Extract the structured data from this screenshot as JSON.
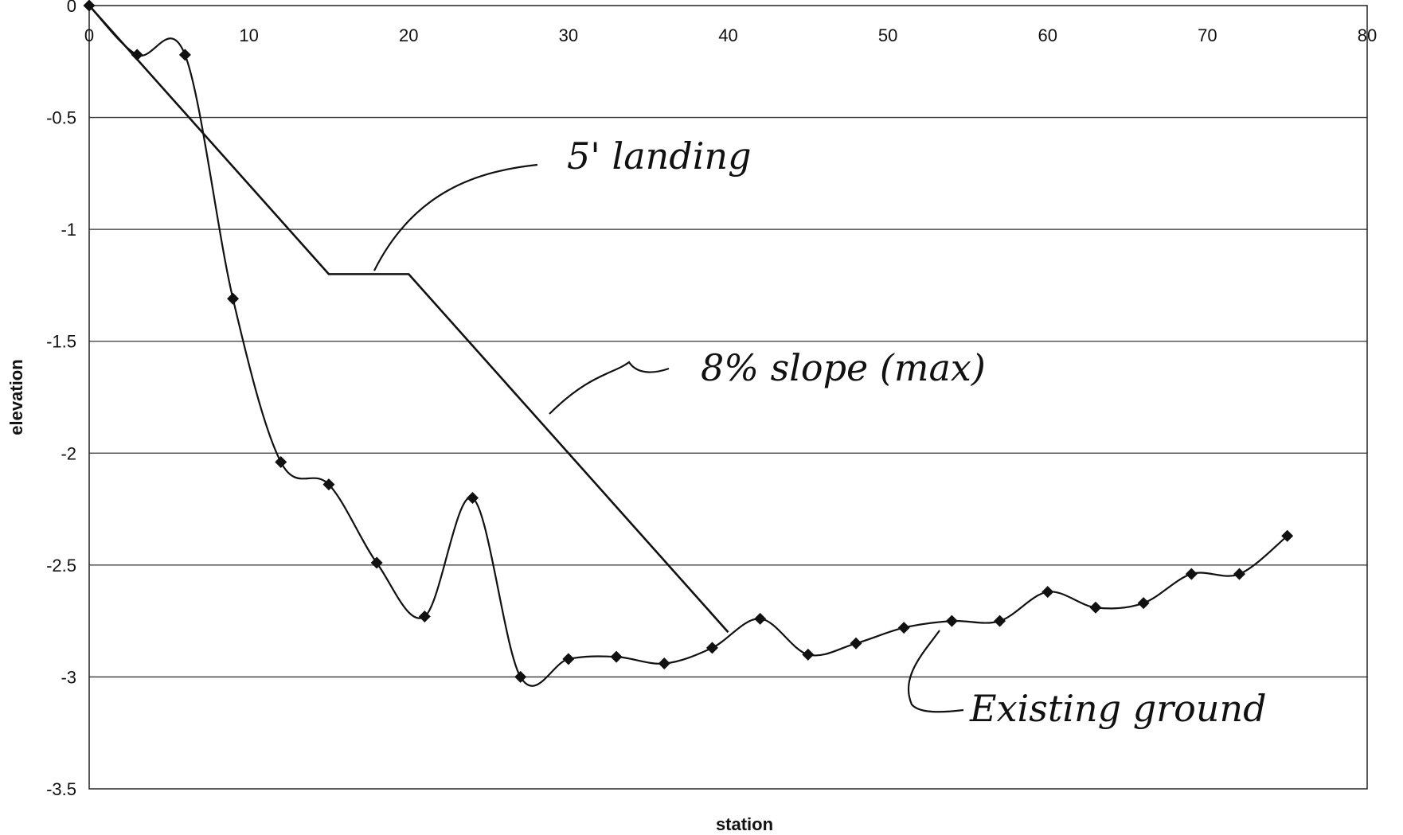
{
  "chart_data": {
    "type": "line",
    "title": "",
    "xlabel": "station",
    "ylabel": "elevation",
    "xlim": [
      0,
      80
    ],
    "ylim": [
      -3.5,
      0
    ],
    "x_ticks": [
      "0",
      "10",
      "20",
      "30",
      "40",
      "50",
      "60",
      "70",
      "80"
    ],
    "y_ticks": [
      "0",
      "-0.5",
      "-1",
      "-1.5",
      "-2",
      "-2.5",
      "-3",
      "-3.5"
    ],
    "grid": "horizontal",
    "legend": "none",
    "series": [
      {
        "marker": "diamond",
        "smooth": true,
        "points": [
          {
            "x": 0,
            "y": 0
          },
          {
            "x": 3,
            "y": -0.22
          },
          {
            "x": 6,
            "y": -0.22
          },
          {
            "x": 9,
            "y": -1.31
          },
          {
            "x": 12,
            "y": -2.04
          },
          {
            "x": 15,
            "y": -2.14
          },
          {
            "x": 18,
            "y": -2.49
          },
          {
            "x": 21,
            "y": -2.73
          },
          {
            "x": 24,
            "y": -2.2
          },
          {
            "x": 27,
            "y": -3.0
          },
          {
            "x": 30,
            "y": -2.92
          },
          {
            "x": 33,
            "y": -2.91
          },
          {
            "x": 36,
            "y": -2.94
          },
          {
            "x": 39,
            "y": -2.87
          },
          {
            "x": 42,
            "y": -2.74
          },
          {
            "x": 45,
            "y": -2.9
          },
          {
            "x": 48,
            "y": -2.85
          },
          {
            "x": 51,
            "y": -2.78
          },
          {
            "x": 54,
            "y": -2.75
          },
          {
            "x": 57,
            "y": -2.75
          },
          {
            "x": 60,
            "y": -2.62
          },
          {
            "x": 63,
            "y": -2.69
          },
          {
            "x": 66,
            "y": -2.67
          },
          {
            "x": 69,
            "y": -2.54
          },
          {
            "x": 72,
            "y": -2.54
          },
          {
            "x": 75,
            "y": -2.37
          }
        ]
      },
      {
        "marker": "none",
        "smooth": false,
        "points": [
          {
            "x": 0,
            "y": 0
          },
          {
            "x": 15,
            "y": -1.2
          },
          {
            "x": 20,
            "y": -1.2
          },
          {
            "x": 40,
            "y": -2.8
          }
        ]
      }
    ],
    "annotations": [
      {
        "text": "5' landing"
      },
      {
        "text": "8% slope (max)"
      },
      {
        "text": "Existing ground"
      }
    ]
  }
}
